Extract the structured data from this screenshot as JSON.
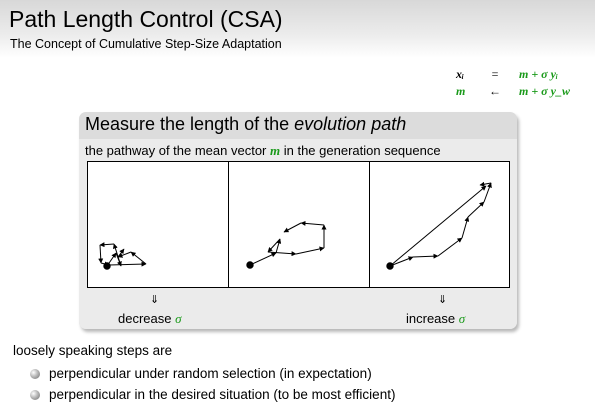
{
  "header": {
    "title": "Path Length Control (CSA)",
    "subtitle": "The Concept of Cumulative Step-Size Adaptation"
  },
  "equations": [
    {
      "lhs": "xᵢ",
      "op": "=",
      "rhs": "m + σ yᵢ"
    },
    {
      "lhs": "m",
      "op": "←",
      "rhs": "m + σ y_w"
    }
  ],
  "box": {
    "title_plain": "Measure the length of the ",
    "title_italic": "evolution path",
    "line_before": "the pathway of the mean vector ",
    "line_symbol": "m",
    "line_after": " in the generation sequence"
  },
  "captions": {
    "arrow": "⇓",
    "left_word": "decrease ",
    "right_word": "increase ",
    "sigma": "σ"
  },
  "text": {
    "loosely": "loosely speaking steps are",
    "bullets": [
      "perpendicular under random selection (in expectation)",
      "perpendicular in the desired situation (to be most efficient)"
    ]
  },
  "colors": {
    "accent_green": "#1a9a1a",
    "header_gray": "#d8d8d8",
    "box_gray": "#dcdcdc"
  }
}
